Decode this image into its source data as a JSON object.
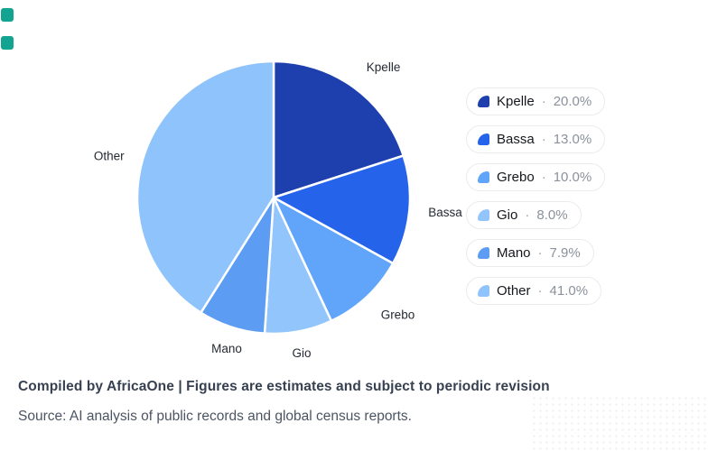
{
  "decoration": {
    "corner_markers": [
      {
        "name": "teal-marker-top",
        "color": "#12a391"
      },
      {
        "name": "teal-marker-bottom",
        "color": "#12a391"
      }
    ]
  },
  "chart_data": {
    "type": "pie",
    "title": "",
    "categories": [
      "Kpelle",
      "Bassa",
      "Grebo",
      "Gio",
      "Mano",
      "Other"
    ],
    "values": [
      20.0,
      13.0,
      10.0,
      8.0,
      7.9,
      41.0
    ],
    "value_labels": [
      "20.0%",
      "13.0%",
      "10.0%",
      "8.0%",
      "7.9%",
      "41.0%"
    ],
    "colors": [
      "#1e40af",
      "#2563eb",
      "#60a5fa",
      "#93c5fd",
      "#5d9cf3",
      "#8fc3fc"
    ],
    "start_angle_deg": 0,
    "direction": "clockwise",
    "slice_border_color": "#ffffff",
    "legend_position": "right",
    "legend_separator": "·"
  },
  "footer": {
    "compiled_line": "Compiled by AfricaOne | Figures are estimates and subject to periodic revision",
    "source_line": "Source: AI analysis of public records and global census reports."
  }
}
